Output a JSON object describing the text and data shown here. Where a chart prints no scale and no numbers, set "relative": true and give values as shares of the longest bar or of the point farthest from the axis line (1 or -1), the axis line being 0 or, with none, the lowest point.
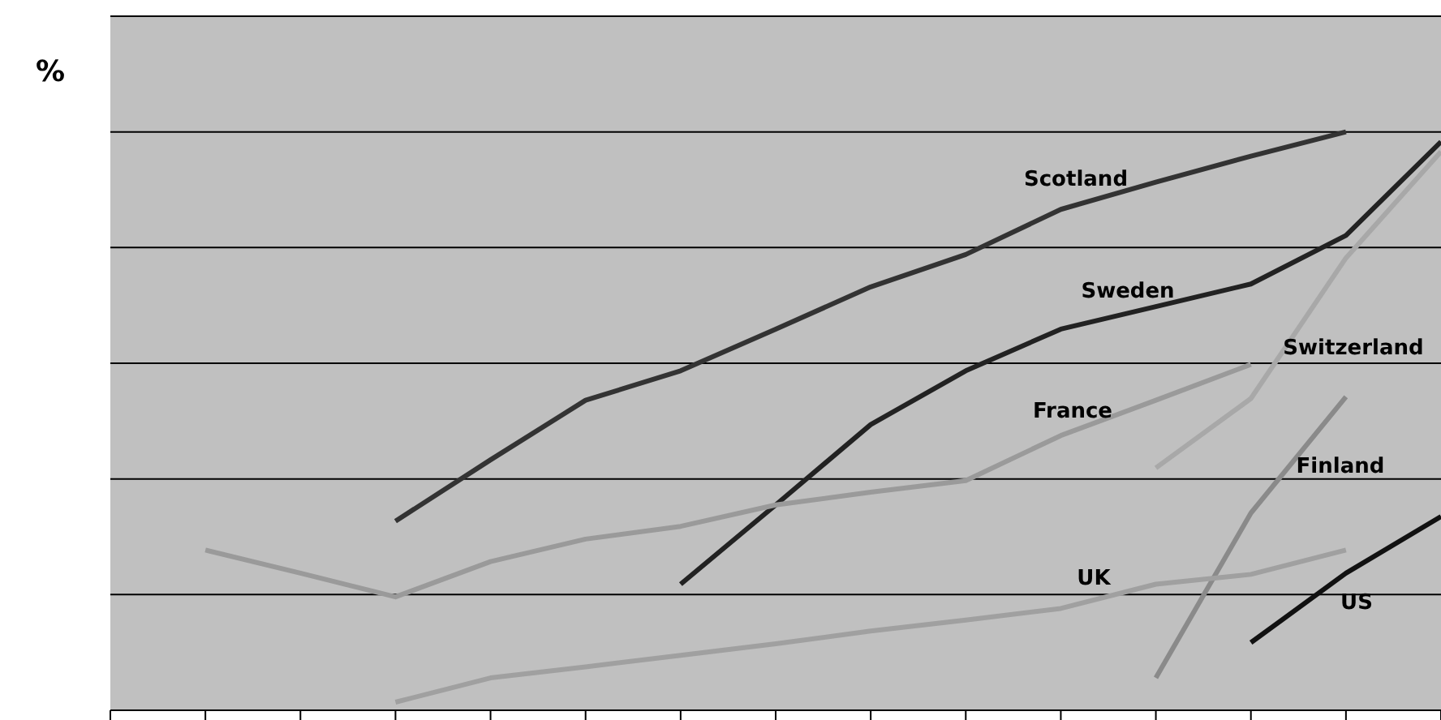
{
  "chart_data": {
    "type": "line",
    "ylabel": "%",
    "relative": true,
    "grid": "y",
    "legend": false,
    "marker": "none",
    "categories": [
      null,
      null,
      null,
      null,
      null,
      null,
      null,
      null,
      null,
      null,
      null,
      null,
      null,
      null,
      null
    ],
    "series": [
      {
        "name": "Scotland",
        "color": "#333333",
        "values": [
          null,
          null,
          null,
          0.327,
          0.433,
          0.536,
          0.587,
          0.659,
          0.732,
          0.788,
          0.866,
          0.913,
          0.958,
          1,
          null
        ]
      },
      {
        "name": "Sweden",
        "color": "#222222",
        "values": [
          null,
          null,
          null,
          null,
          null,
          null,
          0.218,
          0.355,
          0.494,
          0.587,
          0.659,
          0.698,
          0.737,
          0.821,
          0.983
        ]
      },
      {
        "name": "Switzerland",
        "color": "#a8a8a8",
        "values": [
          null,
          null,
          null,
          null,
          null,
          null,
          null,
          null,
          null,
          null,
          null,
          0.419,
          0.539,
          0.782,
          0.966
        ]
      },
      {
        "name": "France",
        "color": "#9a9a9a",
        "values": [
          null,
          0.277,
          0.237,
          0.196,
          0.257,
          0.296,
          0.318,
          0.355,
          0.377,
          0.397,
          0.475,
          0.536,
          0.598,
          null,
          null
        ]
      },
      {
        "name": "Finland",
        "color": "#8a8a8a",
        "values": [
          null,
          null,
          null,
          null,
          null,
          null,
          null,
          null,
          null,
          null,
          null,
          0.056,
          0.341,
          0.542,
          null
        ]
      },
      {
        "name": "UK",
        "color": "#a0a0a0",
        "values": [
          null,
          null,
          null,
          0.014,
          0.056,
          0.075,
          0.095,
          0.115,
          0.137,
          0.156,
          0.176,
          0.218,
          0.235,
          0.277,
          null
        ]
      },
      {
        "name": "US",
        "color": "#111111",
        "values": [
          null,
          null,
          null,
          null,
          null,
          null,
          null,
          null,
          null,
          null,
          null,
          null,
          0.117,
          0.237,
          0.335
        ]
      }
    ]
  }
}
